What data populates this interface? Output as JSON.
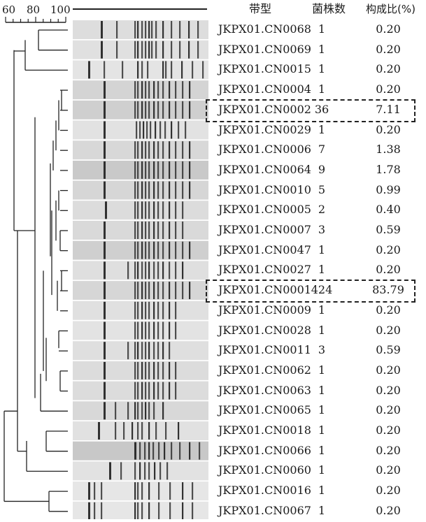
{
  "scale": {
    "labels": [
      "60",
      "80",
      "100"
    ]
  },
  "headers": {
    "pattern": "带型",
    "count": "菌株数",
    "ratio": "构成比(%)"
  },
  "rows": [
    {
      "pattern": "JKPX01.CN0068",
      "count": "1",
      "ratio": "0.20",
      "highlight": false
    },
    {
      "pattern": "JKPX01.CN0069",
      "count": "1",
      "ratio": "0.20",
      "highlight": false
    },
    {
      "pattern": "JKPX01.CN0015",
      "count": "1",
      "ratio": "0.20",
      "highlight": false
    },
    {
      "pattern": "JKPX01.CN0004",
      "count": "1",
      "ratio": "0.20",
      "highlight": false
    },
    {
      "pattern": "JKPX01.CN0002",
      "count": "36",
      "ratio": "7.11",
      "highlight": true
    },
    {
      "pattern": "JKPX01.CN0029",
      "count": "1",
      "ratio": "0.20",
      "highlight": false
    },
    {
      "pattern": "JKPX01.CN0006",
      "count": "7",
      "ratio": "1.38",
      "highlight": false
    },
    {
      "pattern": "JKPX01.CN0064",
      "count": "9",
      "ratio": "1.78",
      "highlight": false
    },
    {
      "pattern": "JKPX01.CN0010",
      "count": "5",
      "ratio": "0.99",
      "highlight": false
    },
    {
      "pattern": "JKPX01.CN0005",
      "count": "2",
      "ratio": "0.40",
      "highlight": false
    },
    {
      "pattern": "JKPX01.CN0007",
      "count": "3",
      "ratio": "0.59",
      "highlight": false
    },
    {
      "pattern": "JKPX01.CN0047",
      "count": "1",
      "ratio": "0.20",
      "highlight": false
    },
    {
      "pattern": "JKPX01.CN0027",
      "count": "1",
      "ratio": "0.20",
      "highlight": false
    },
    {
      "pattern": "JKPX01.CN0001",
      "count": "424",
      "ratio": "83.79",
      "highlight": true
    },
    {
      "pattern": "JKPX01.CN0009",
      "count": "1",
      "ratio": "0.20",
      "highlight": false
    },
    {
      "pattern": "JKPX01.CN0028",
      "count": "1",
      "ratio": "0.20",
      "highlight": false
    },
    {
      "pattern": "JKPX01.CN0011",
      "count": "3",
      "ratio": "0.59",
      "highlight": false
    },
    {
      "pattern": "JKPX01.CN0062",
      "count": "1",
      "ratio": "0.20",
      "highlight": false
    },
    {
      "pattern": "JKPX01.CN0063",
      "count": "1",
      "ratio": "0.20",
      "highlight": false
    },
    {
      "pattern": "JKPX01.CN0065",
      "count": "1",
      "ratio": "0.20",
      "highlight": false
    },
    {
      "pattern": "JKPX01.CN0018",
      "count": "1",
      "ratio": "0.20",
      "highlight": false
    },
    {
      "pattern": "JKPX01.CN0066",
      "count": "1",
      "ratio": "0.20",
      "highlight": false
    },
    {
      "pattern": "JKPX01.CN0060",
      "count": "1",
      "ratio": "0.20",
      "highlight": false
    },
    {
      "pattern": "JKPX01.CN0016",
      "count": "1",
      "ratio": "0.20",
      "highlight": false
    },
    {
      "pattern": "JKPX01.CN0067",
      "count": "1",
      "ratio": "0.20",
      "highlight": false
    }
  ],
  "colors": {
    "line": "#222222",
    "lane_bg": "#d6d6d6",
    "band": "#1e1e1e"
  }
}
